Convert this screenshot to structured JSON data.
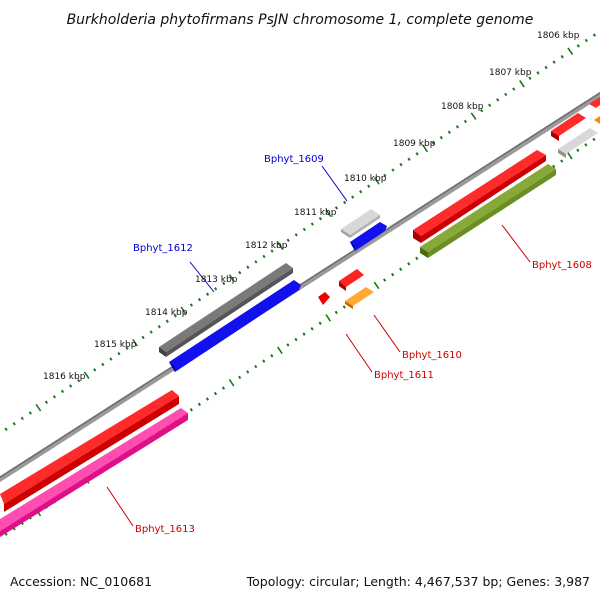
{
  "title": "Burkholderia phytofirmans PsJN chromosome 1, complete genome",
  "footer": {
    "accession": "Accession: NC_010681",
    "topology": "Topology: circular; Length: 4,467,537 bp; Genes: 3,987"
  },
  "kbp_ticks": [
    "1806 kbp",
    "1807 kbp",
    "1808 kbp",
    "1809 kbp",
    "1810 kbp",
    "1811 kbp",
    "1812 kbp",
    "1813 kbp",
    "1814 kbp",
    "1815 kbp",
    "1816 kbp"
  ],
  "genes": [
    {
      "id": "Bphyt_1608",
      "label": "Bphyt_1608",
      "color": "#cc0000",
      "strand": "forward",
      "fill": "#6b8e23"
    },
    {
      "id": "Bphyt_1609",
      "label": "Bphyt_1609",
      "color": "#0000cc",
      "strand": "reverse",
      "fill": "#1111ee"
    },
    {
      "id": "Bphyt_1610",
      "label": "Bphyt_1610",
      "color": "#cc0000",
      "strand": "forward",
      "fill": "#ff8c00"
    },
    {
      "id": "Bphyt_1611",
      "label": "Bphyt_1611",
      "color": "#cc0000",
      "strand": "forward",
      "fill": "#ee0000"
    },
    {
      "id": "Bphyt_1612",
      "label": "Bphyt_1612",
      "color": "#0000cc",
      "strand": "reverse",
      "fill": "#1111ee"
    },
    {
      "id": "Bphyt_1613",
      "label": "Bphyt_1613",
      "color": "#cc0000",
      "strand": "forward",
      "fill": "#ee1493"
    }
  ],
  "colors": {
    "backbone": "#808080",
    "tick_green": "#1a7a1a",
    "gray_gene": "#c0c0c0",
    "dark_gray_gene": "#5a5a5a",
    "red_gene": "#ee0000",
    "orange_gene": "#ff8c00",
    "olive_gene": "#6b8e23",
    "blue_gene": "#1111ee",
    "pink_gene": "#ee1493"
  }
}
